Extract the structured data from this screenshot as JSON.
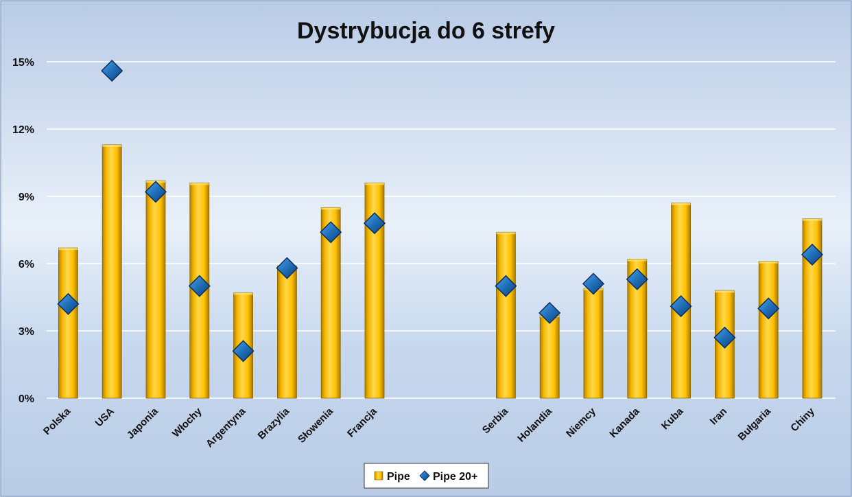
{
  "chart_data": {
    "type": "bar",
    "title": "Dystrybucja do 6 strefy",
    "categories": [
      "Polska",
      "USA",
      "Japonia",
      "Włochy",
      "Argentyna",
      "Brazylia",
      "Słowenia",
      "Francja",
      "",
      "",
      "Serbia",
      "Holandia",
      "Niemcy",
      "Kanada",
      "Kuba",
      "Iran",
      "Bułgaria",
      "Chiny"
    ],
    "series": [
      {
        "name": "Pipe",
        "mark": "bar",
        "values": [
          6.7,
          11.3,
          9.7,
          9.6,
          4.7,
          5.9,
          8.5,
          9.6,
          null,
          null,
          7.4,
          3.7,
          4.9,
          6.2,
          8.7,
          4.8,
          6.1,
          8.0
        ]
      },
      {
        "name": "Pipe 20+",
        "mark": "diamond",
        "values": [
          4.2,
          14.6,
          9.2,
          5.0,
          2.1,
          5.8,
          7.4,
          7.8,
          null,
          null,
          5.0,
          3.8,
          5.1,
          5.3,
          4.1,
          2.7,
          4.0,
          6.4
        ]
      }
    ],
    "yticks": [
      "0%",
      "3%",
      "6%",
      "9%",
      "12%",
      "15%"
    ],
    "ylim": [
      0,
      15
    ],
    "grid": true,
    "legend_position": "bottom-center",
    "colors": {
      "bar": "#FFC000",
      "bar_dark": "#C08A00",
      "marker": "#1F6FB8",
      "marker_dark": "#0B2E5E",
      "background_top": "#BBCDE7",
      "background_mid": "#E6EEF8",
      "grid": "#FFFFFF"
    }
  }
}
